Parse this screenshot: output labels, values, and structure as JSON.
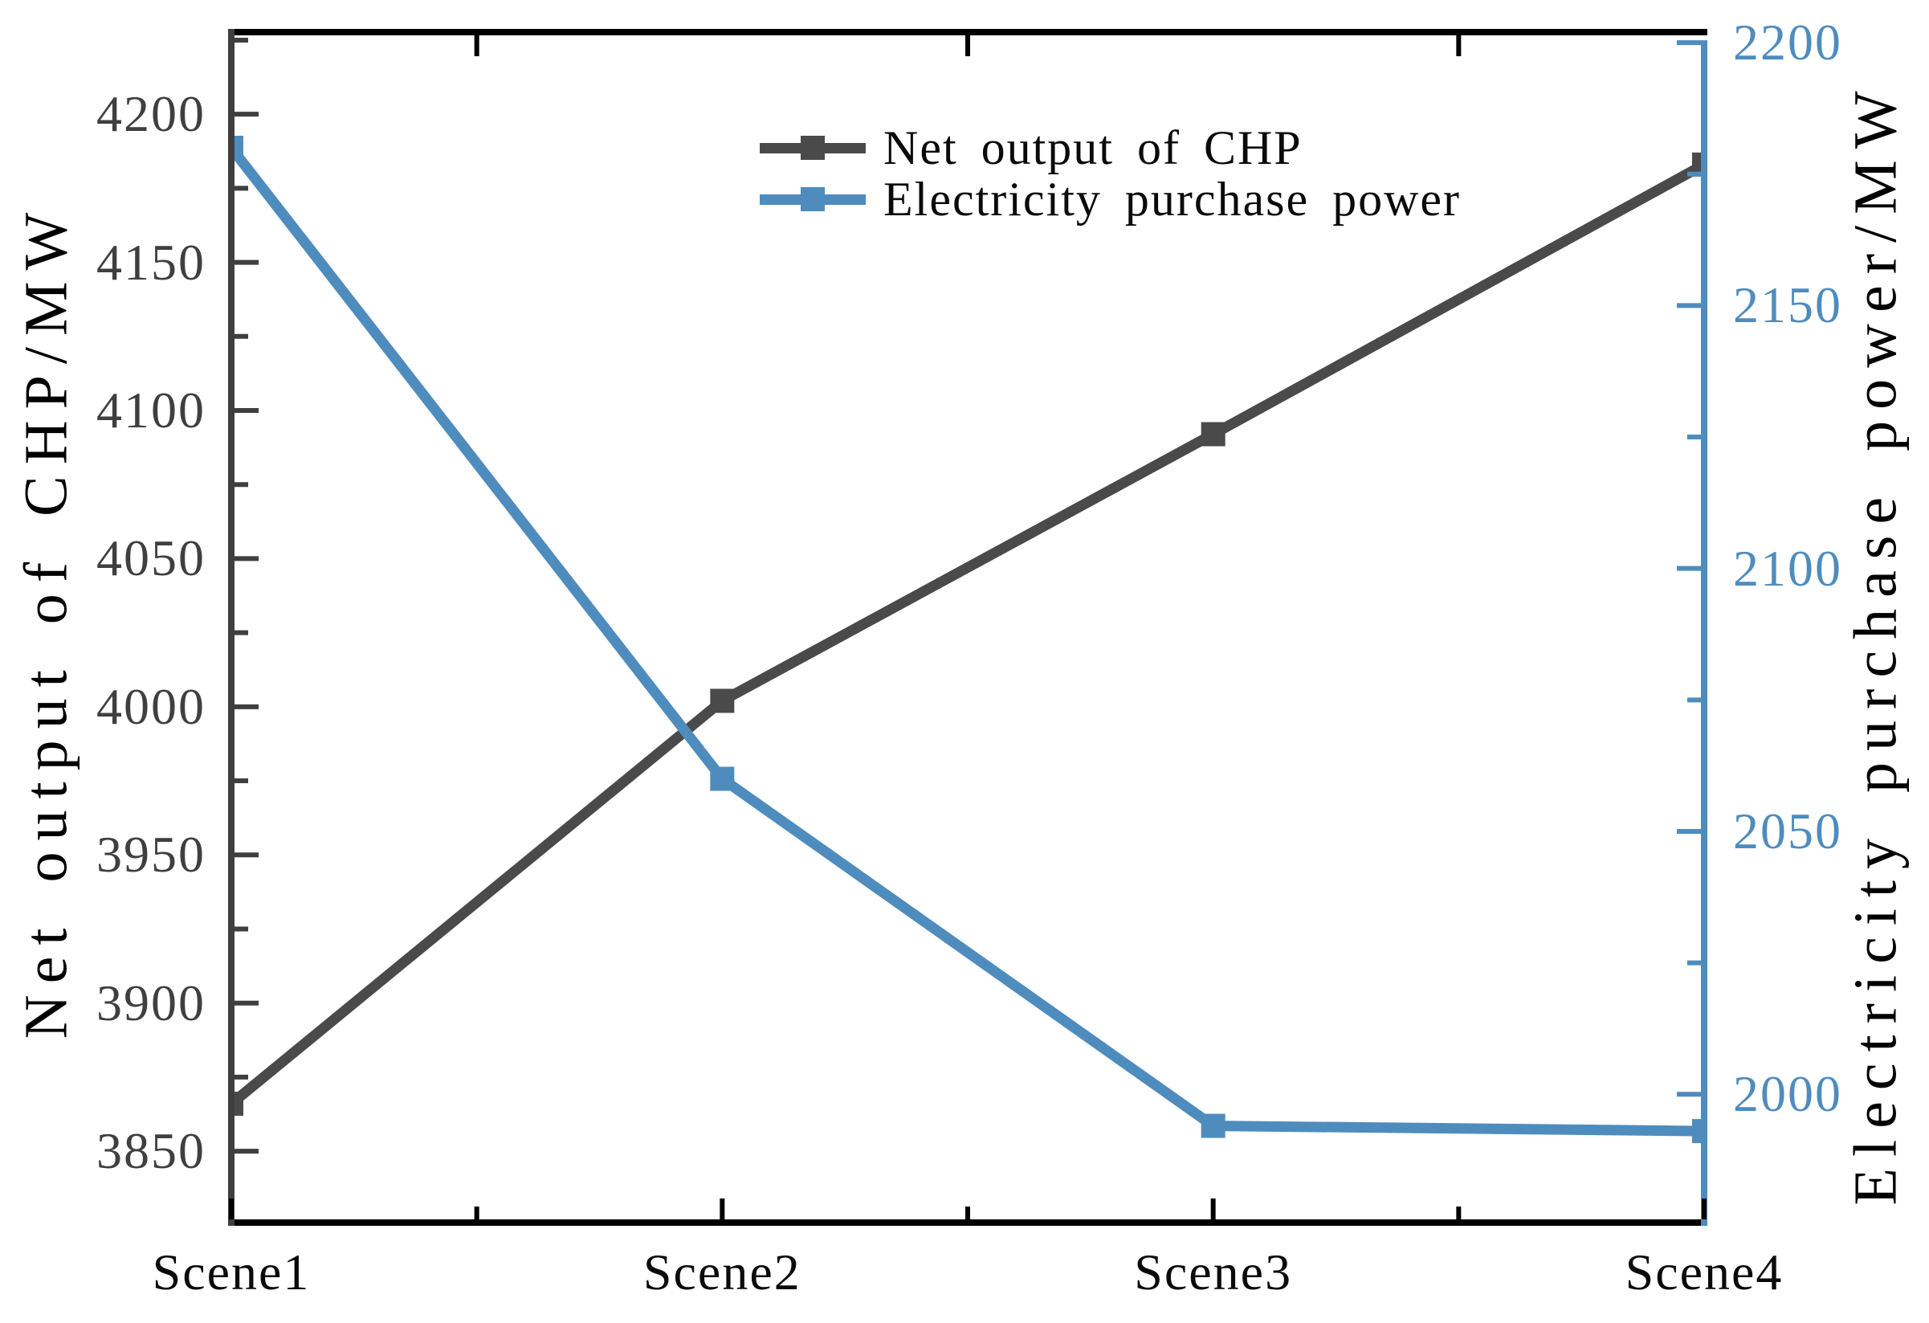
{
  "chart_data": {
    "type": "line",
    "categories": [
      "Scene1",
      "Scene2",
      "Scene3",
      "Scene4"
    ],
    "series": [
      {
        "name": "Net output of CHP",
        "axis": "left",
        "color": "#4a4a4a",
        "marker": "square",
        "values": [
          3866,
          4002,
          4092,
          4183
        ]
      },
      {
        "name": "Electricity purchase power",
        "axis": "right",
        "color": "#4e8cbe",
        "marker": "square",
        "values": [
          2180,
          2060,
          1994,
          1993
        ]
      }
    ],
    "left_axis": {
      "label": "Net output of CHP/MW",
      "min": 3825.9,
      "max": 4227.7,
      "major_ticks": [
        4200,
        4150,
        4100,
        4050,
        4000,
        3950,
        3900,
        3850
      ],
      "minor_ticks": [
        4225,
        4175,
        4125,
        4075,
        4025,
        3975,
        3925,
        3875
      ],
      "color": "#3f3f3f"
    },
    "right_axis": {
      "label": "Electricity purchase power/MW",
      "min": 1975.6,
      "max": 2202,
      "major_ticks": [
        2200,
        2150,
        2100,
        2050,
        2000
      ],
      "minor_ticks": [
        2175,
        2125,
        2075,
        2025
      ],
      "color": "#4e8cbe"
    },
    "x_axis": {
      "minor_positions": [
        0.5,
        1.5,
        2.5
      ],
      "color": "#000000"
    },
    "legend": {
      "items": [
        "Net output of CHP",
        "Electricity purchase power"
      ],
      "position": "upper-center"
    },
    "grid": false
  },
  "colors": {
    "dark_series": "#4a4a4a",
    "blue_series": "#4e8cbe",
    "left_tick_label": "#3f3f3f",
    "black": "#000000",
    "background": "#ffffff"
  }
}
